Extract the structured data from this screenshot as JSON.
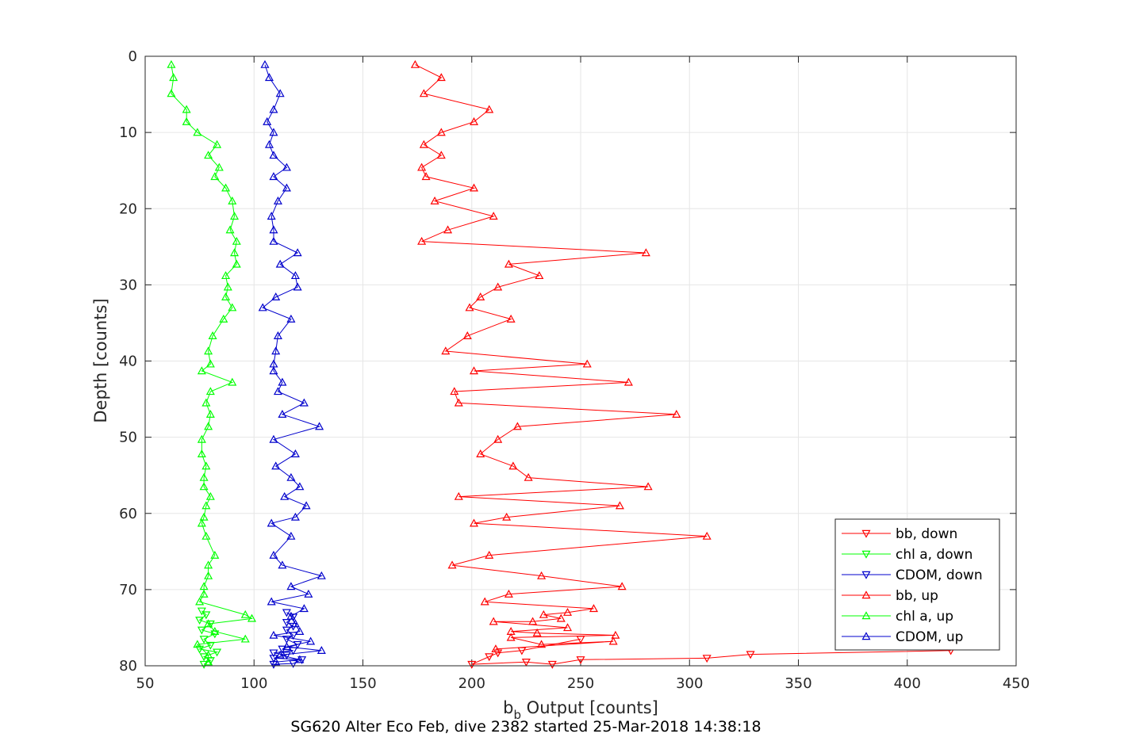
{
  "caption": "SG620 Alter Eco Feb, dive 2382 started 25-Mar-2018 14:38:18",
  "chart_data": {
    "type": "line",
    "xlabel_main": "b",
    "xlabel_sub": "b",
    "xlabel_rest": " Output [counts]",
    "ylabel": "Depth [counts]",
    "xlim": [
      50,
      450
    ],
    "ylim": [
      0,
      80
    ],
    "y_reversed": true,
    "grid": true,
    "xticks": [
      "50",
      "100",
      "150",
      "200",
      "250",
      "300",
      "350",
      "400",
      "450"
    ],
    "yticks": [
      "0",
      "10",
      "20",
      "30",
      "40",
      "50",
      "60",
      "70",
      "80"
    ],
    "legend_position": "bottom-right",
    "series": [
      {
        "name": "bb, down",
        "color": "#ff0000",
        "marker": "down",
        "points": [
          [
            420,
            78
          ],
          [
            328,
            78.5
          ],
          [
            308,
            79
          ],
          [
            250,
            79.2
          ],
          [
            237,
            79.8
          ],
          [
            225,
            79.5
          ],
          [
            200,
            79.8
          ],
          [
            208,
            78.8
          ],
          [
            212,
            78.3
          ],
          [
            223,
            78
          ],
          [
            250,
            76.5
          ]
        ]
      },
      {
        "name": "chl a, down",
        "color": "#00ff00",
        "marker": "down",
        "points": [
          [
            77,
            79.8
          ],
          [
            80,
            79.3
          ],
          [
            77,
            78.8
          ],
          [
            83,
            78.2
          ],
          [
            75,
            77.8
          ],
          [
            80,
            77.3
          ],
          [
            77,
            76.5
          ],
          [
            82,
            75.8
          ],
          [
            76,
            75.3
          ],
          [
            80,
            74.5
          ],
          [
            75,
            74
          ],
          [
            78,
            73.3
          ],
          [
            76,
            72.8
          ]
        ]
      },
      {
        "name": "CDOM, down",
        "color": "#0000cc",
        "marker": "down",
        "points": [
          [
            109,
            79.8
          ],
          [
            118,
            79.7
          ],
          [
            122,
            79.2
          ],
          [
            109,
            79
          ],
          [
            115,
            78.6
          ],
          [
            109,
            78.3
          ],
          [
            118,
            78
          ],
          [
            113,
            77.8
          ],
          [
            120,
            77.2
          ],
          [
            115,
            76.5
          ],
          [
            118,
            76
          ],
          [
            115,
            75.3
          ],
          [
            118,
            74.8
          ],
          [
            115,
            74.3
          ],
          [
            118,
            73.6
          ],
          [
            115,
            73
          ]
        ]
      },
      {
        "name": "bb, up",
        "color": "#ff0000",
        "marker": "up",
        "points": [
          [
            174,
            1.1
          ],
          [
            186,
            2.8
          ],
          [
            178,
            4.9
          ],
          [
            208,
            7
          ],
          [
            201,
            8.6
          ],
          [
            186,
            10
          ],
          [
            178,
            11.6
          ],
          [
            186,
            13
          ],
          [
            177,
            14.6
          ],
          [
            179,
            15.8
          ],
          [
            201,
            17.3
          ],
          [
            183,
            19
          ],
          [
            210,
            21
          ],
          [
            189,
            22.8
          ],
          [
            177,
            24.3
          ],
          [
            280,
            25.8
          ],
          [
            217,
            27.3
          ],
          [
            231,
            28.8
          ],
          [
            212,
            30.3
          ],
          [
            204,
            31.6
          ],
          [
            199,
            33
          ],
          [
            218,
            34.5
          ],
          [
            198,
            36.7
          ],
          [
            188,
            38.7
          ],
          [
            253,
            40.4
          ],
          [
            201,
            41.3
          ],
          [
            272,
            42.8
          ],
          [
            192,
            44
          ],
          [
            194,
            45.5
          ],
          [
            294,
            47
          ],
          [
            221,
            48.6
          ],
          [
            212,
            50.3
          ],
          [
            204,
            52.2
          ],
          [
            219,
            53.8
          ],
          [
            226,
            55.3
          ],
          [
            281,
            56.5
          ],
          [
            194,
            57.8
          ],
          [
            268,
            59
          ],
          [
            216,
            60.5
          ],
          [
            201,
            61.3
          ],
          [
            308,
            63
          ],
          [
            208,
            65.5
          ],
          [
            191,
            66.8
          ],
          [
            232,
            68.2
          ],
          [
            269,
            69.6
          ],
          [
            217,
            70.6
          ],
          [
            206,
            71.6
          ],
          [
            256,
            72.5
          ],
          [
            244,
            73
          ],
          [
            233,
            73.3
          ],
          [
            241,
            73.8
          ],
          [
            228,
            74.2
          ],
          [
            210,
            74.2
          ],
          [
            244,
            75
          ],
          [
            218,
            75.5
          ],
          [
            230,
            75.7
          ],
          [
            266,
            76
          ],
          [
            218,
            76.3
          ],
          [
            232,
            77.2
          ],
          [
            265,
            76.8
          ],
          [
            211,
            77.8
          ]
        ]
      },
      {
        "name": "chl a, up",
        "color": "#00ff00",
        "marker": "up",
        "points": [
          [
            62,
            1.1
          ],
          [
            63,
            2.8
          ],
          [
            62,
            4.9
          ],
          [
            69,
            7
          ],
          [
            69,
            8.6
          ],
          [
            74,
            10
          ],
          [
            83,
            11.6
          ],
          [
            79,
            13
          ],
          [
            84,
            14.6
          ],
          [
            82,
            15.8
          ],
          [
            87,
            17.3
          ],
          [
            90,
            19
          ],
          [
            91,
            21
          ],
          [
            89,
            22.8
          ],
          [
            92,
            24.3
          ],
          [
            91,
            25.8
          ],
          [
            92,
            27.3
          ],
          [
            87,
            28.8
          ],
          [
            88,
            30.3
          ],
          [
            87,
            31.6
          ],
          [
            90,
            33
          ],
          [
            86,
            34.5
          ],
          [
            81,
            36.7
          ],
          [
            79,
            38.7
          ],
          [
            80,
            40.4
          ],
          [
            76,
            41.3
          ],
          [
            90,
            42.8
          ],
          [
            80,
            44
          ],
          [
            78,
            45.5
          ],
          [
            80,
            47
          ],
          [
            79,
            48.6
          ],
          [
            76,
            50.3
          ],
          [
            76,
            52.2
          ],
          [
            78,
            53.8
          ],
          [
            77,
            55.3
          ],
          [
            77,
            56.5
          ],
          [
            80,
            57.8
          ],
          [
            78,
            59
          ],
          [
            77,
            60.5
          ],
          [
            76,
            61.3
          ],
          [
            78,
            63
          ],
          [
            82,
            65.5
          ],
          [
            79,
            66.8
          ],
          [
            79,
            68.2
          ],
          [
            77,
            69.6
          ],
          [
            77,
            70.6
          ],
          [
            75,
            71.6
          ],
          [
            96,
            73.3
          ],
          [
            99,
            73.8
          ],
          [
            79,
            74.5
          ],
          [
            82,
            75.5
          ],
          [
            96,
            76.5
          ],
          [
            74,
            77.2
          ],
          [
            79,
            78.6
          ],
          [
            79,
            79.5
          ]
        ]
      },
      {
        "name": "CDOM, up",
        "color": "#0000cc",
        "marker": "up",
        "points": [
          [
            105,
            1.1
          ],
          [
            107,
            2.8
          ],
          [
            112,
            4.9
          ],
          [
            109,
            7
          ],
          [
            106,
            8.6
          ],
          [
            109,
            10
          ],
          [
            107,
            11.6
          ],
          [
            109,
            13
          ],
          [
            115,
            14.6
          ],
          [
            109,
            15.8
          ],
          [
            115,
            17.3
          ],
          [
            111,
            19
          ],
          [
            108,
            21
          ],
          [
            109,
            22.8
          ],
          [
            109,
            24.3
          ],
          [
            120,
            25.8
          ],
          [
            112,
            27.3
          ],
          [
            119,
            28.8
          ],
          [
            120,
            30.3
          ],
          [
            110,
            31.6
          ],
          [
            104,
            33
          ],
          [
            117,
            34.5
          ],
          [
            111,
            36.7
          ],
          [
            110,
            38.7
          ],
          [
            109,
            40.4
          ],
          [
            109,
            41.3
          ],
          [
            113,
            42.8
          ],
          [
            111,
            44
          ],
          [
            123,
            45.5
          ],
          [
            113,
            47
          ],
          [
            130,
            48.6
          ],
          [
            109,
            50.3
          ],
          [
            119,
            52.2
          ],
          [
            110,
            53.8
          ],
          [
            117,
            55.3
          ],
          [
            121,
            56.5
          ],
          [
            114,
            57.8
          ],
          [
            124,
            59
          ],
          [
            119,
            60.5
          ],
          [
            108,
            61.3
          ],
          [
            117,
            63
          ],
          [
            109,
            65.5
          ],
          [
            113,
            66.8
          ],
          [
            131,
            68.2
          ],
          [
            117,
            69.6
          ],
          [
            125,
            70.6
          ],
          [
            108,
            71.6
          ],
          [
            123,
            72.5
          ],
          [
            117,
            73.5
          ],
          [
            119,
            74.5
          ],
          [
            121,
            75.5
          ],
          [
            109,
            76
          ],
          [
            126,
            76.8
          ],
          [
            115,
            77.5
          ],
          [
            131,
            78
          ],
          [
            112,
            78.6
          ],
          [
            121,
            79.2
          ],
          [
            110,
            79.5
          ]
        ]
      }
    ]
  }
}
